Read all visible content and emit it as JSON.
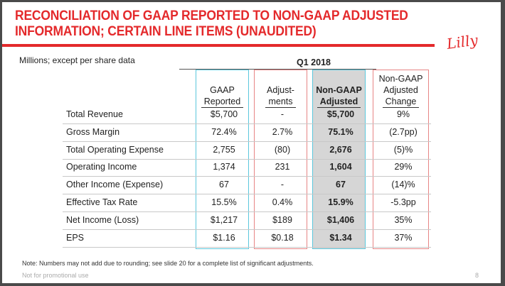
{
  "title": {
    "line1": "RECONCILIATION OF GAAP REPORTED TO NON-GAAP ADJUSTED",
    "line2": "INFORMATION; CERTAIN LINE ITEMS (UNAUDITED)"
  },
  "logo": "Lilly",
  "units_label": "Millions; except per share data",
  "period": "Q1 2018",
  "columns": [
    {
      "line1": "",
      "line2": "GAAP",
      "line3": "Reported"
    },
    {
      "line1": "",
      "line2": "Adjust-",
      "line3": "ments"
    },
    {
      "line1": "",
      "line2": "Non-GAAP",
      "line3": "Adjusted"
    },
    {
      "line1": "Non-GAAP",
      "line2": "Adjusted",
      "line3": "Change"
    }
  ],
  "rows": [
    {
      "label": "Total Revenue",
      "gaap": "$5,700",
      "adj": "-",
      "nongaap": "$5,700",
      "change": "9%"
    },
    {
      "label": "Gross Margin",
      "gaap": "72.4%",
      "adj": "2.7%",
      "nongaap": "75.1%",
      "change": "(2.7pp)"
    },
    {
      "label": "Total Operating Expense",
      "gaap": "2,755",
      "adj": "(80)",
      "nongaap": "2,676",
      "change": "(5)%"
    },
    {
      "label": "Operating Income",
      "gaap": "1,374",
      "adj": "231",
      "nongaap": "1,604",
      "change": "29%"
    },
    {
      "label": "Other Income (Expense)",
      "gaap": "67",
      "adj": "-",
      "nongaap": "67",
      "change": "(14)%"
    },
    {
      "label": "Effective Tax Rate",
      "gaap": "15.5%",
      "adj": "0.4%",
      "nongaap": "15.9%",
      "change": "-5.3pp"
    },
    {
      "label": "Net Income (Loss)",
      "gaap": "$1,217",
      "adj": "$189",
      "nongaap": "$1,406",
      "change": "35%"
    },
    {
      "label": "EPS",
      "gaap": "$1.16",
      "adj": "$0.18",
      "nongaap": "$1.34",
      "change": "37%"
    }
  ],
  "note": "Note:  Numbers may not add due to rounding; see slide 20 for a complete list of significant adjustments.",
  "footer": "Not for promotional use",
  "page_number": "8",
  "colors": {
    "brand_red": "#e4292b",
    "cyan_border": "#5bc7dc",
    "red_border": "#e78585",
    "highlight_gray": "#d6d6d6"
  }
}
